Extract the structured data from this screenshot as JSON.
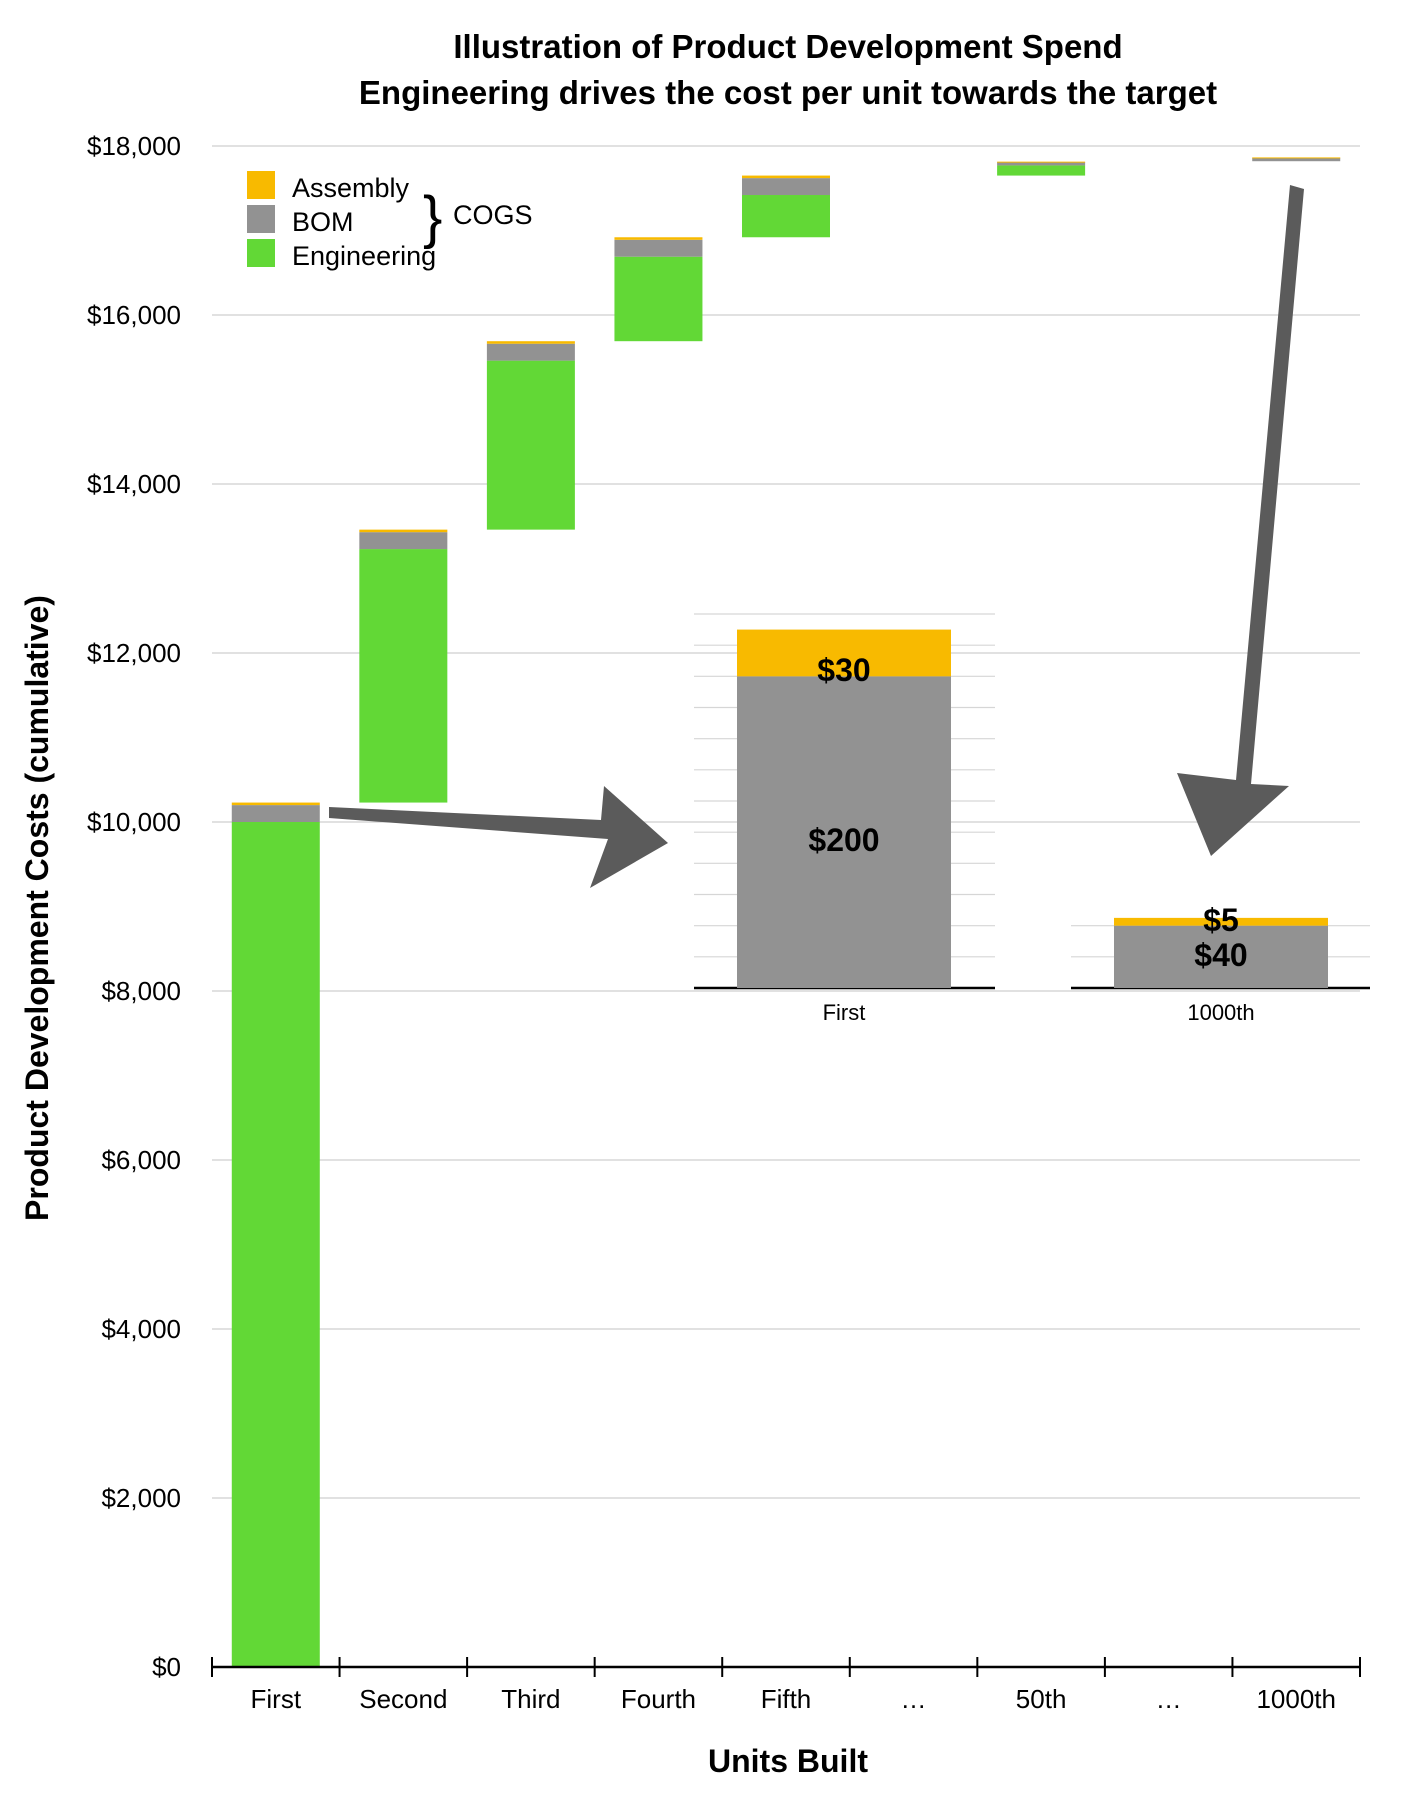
{
  "chart_data": {
    "type": "bar",
    "subtype": "stacked-waterfall",
    "title": "Illustration of Product Development Spend",
    "subtitle": "Engineering drives the cost per unit towards the target",
    "xlabel": "Units Built",
    "ylabel": "Product Development Costs (cumulative)",
    "ylim": [
      0,
      18000
    ],
    "yticks": [
      "$0",
      "$2,000",
      "$4,000",
      "$6,000",
      "$8,000",
      "$10,000",
      "$12,000",
      "$14,000",
      "$16,000",
      "$18,000"
    ],
    "grid": true,
    "legend_position": "top-left",
    "categories": [
      "First",
      "Second",
      "Third",
      "Fourth",
      "Fifth",
      "…",
      "50th",
      "…",
      "1000th"
    ],
    "base": [
      0,
      10230,
      13460,
      15690,
      16920,
      null,
      17650,
      null,
      17820
    ],
    "series": [
      {
        "name": "Engineering",
        "color": "#62d836",
        "values": [
          10000,
          3000,
          2000,
          1000,
          500,
          null,
          120,
          null,
          0
        ]
      },
      {
        "name": "BOM",
        "color": "#929292",
        "values": [
          200,
          200,
          200,
          200,
          200,
          null,
          40,
          null,
          40
        ]
      },
      {
        "name": "Assembly",
        "color": "#f8ba00",
        "values": [
          30,
          30,
          30,
          30,
          30,
          null,
          5,
          null,
          5
        ]
      }
    ],
    "legend": {
      "items": [
        {
          "name": "Assembly",
          "color": "#f8ba00"
        },
        {
          "name": "BOM",
          "color": "#929292"
        },
        {
          "name": "Engineering",
          "color": "#62d836"
        }
      ],
      "group_label": "COGS",
      "group_bracket": "}"
    },
    "inset": {
      "categories": [
        "First",
        "1000th"
      ],
      "series": [
        {
          "name": "BOM",
          "color": "#929292",
          "values": [
            200,
            40
          ],
          "labels": [
            "$200",
            "$40"
          ]
        },
        {
          "name": "Assembly",
          "color": "#f8ba00",
          "values": [
            30,
            5
          ],
          "labels": [
            "$30",
            "$5"
          ]
        }
      ]
    },
    "annotations": [
      {
        "type": "arrow",
        "from": "First unit bar",
        "to": "inset First bar",
        "color": "#5b5b5b"
      },
      {
        "type": "arrow",
        "from": "1000th unit bar",
        "to": "inset 1000th bar",
        "color": "#5b5b5b"
      }
    ]
  }
}
